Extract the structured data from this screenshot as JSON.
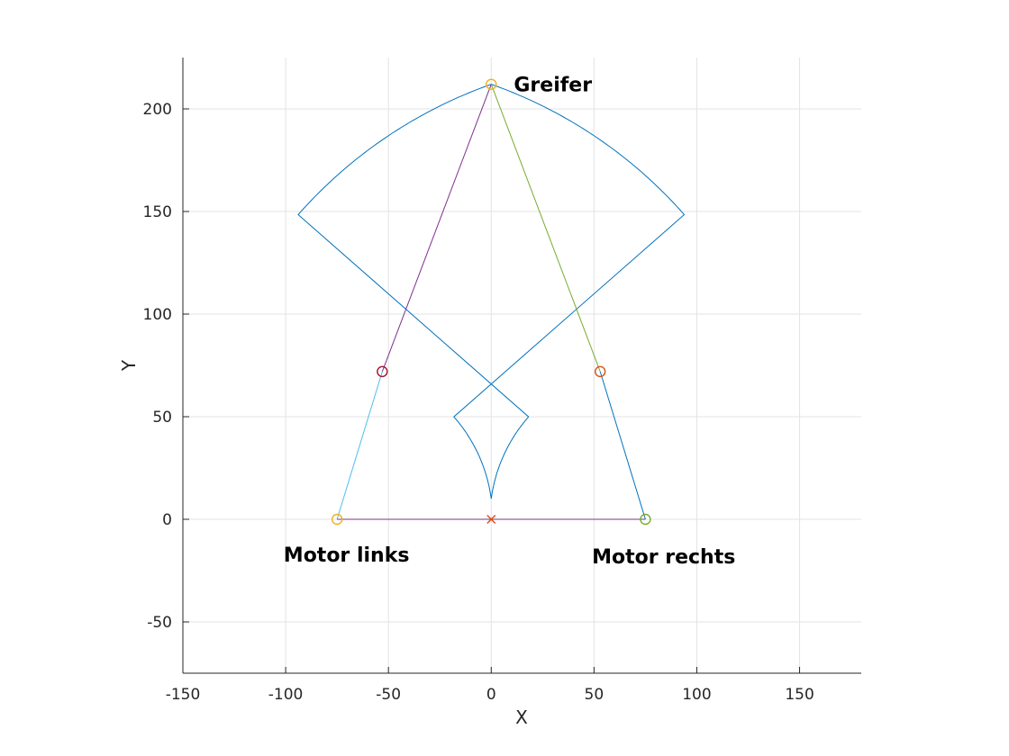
{
  "chart_data": {
    "type": "line",
    "xlabel": "X",
    "ylabel": "Y",
    "xlim": [
      -150,
      180
    ],
    "ylim": [
      -75,
      225
    ],
    "xticks": [
      -150,
      -100,
      -50,
      0,
      50,
      100,
      150
    ],
    "yticks": [
      -50,
      0,
      50,
      100,
      150,
      200
    ],
    "grid": true,
    "workspace_boundary": {
      "color": "#0072BD",
      "motor_left": [
        -75,
        0
      ],
      "motor_right": [
        75,
        0
      ],
      "inner_cusp": [
        0,
        10
      ],
      "upper_left_corner": [
        -82,
        138
      ],
      "upper_right_corner": [
        82,
        138
      ],
      "top_point": [
        0,
        212
      ]
    },
    "links": [
      {
        "from": [
          -75,
          0
        ],
        "to": [
          -53,
          72
        ],
        "color": "#4DBEEE"
      },
      {
        "from": [
          -53,
          72
        ],
        "to": [
          0,
          212
        ],
        "color": "#7E2F8E"
      },
      {
        "from": [
          75,
          0
        ],
        "to": [
          53,
          72
        ],
        "color": "#0072BD"
      },
      {
        "from": [
          53,
          72
        ],
        "to": [
          0,
          212
        ],
        "color": "#77AC30"
      },
      {
        "from": [
          -75,
          0
        ],
        "to": [
          75,
          0
        ],
        "color": "#7E2F8E"
      }
    ],
    "points": [
      {
        "x": -75,
        "y": 0,
        "marker": "circle",
        "color": "#EDB120"
      },
      {
        "x": 75,
        "y": 0,
        "marker": "circle",
        "color": "#77AC30"
      },
      {
        "x": -53,
        "y": 72,
        "marker": "circle",
        "color": "#A2142F"
      },
      {
        "x": 53,
        "y": 72,
        "marker": "circle",
        "color": "#D95319"
      },
      {
        "x": 0,
        "y": 212,
        "marker": "circle",
        "color": "#EDB120"
      },
      {
        "x": 0,
        "y": 0,
        "marker": "cross",
        "color": "#D95319"
      }
    ],
    "annotations": [
      {
        "text": "Greifer",
        "x": 11,
        "y": 212
      },
      {
        "text": "Motor links",
        "x": -101,
        "y": -17
      },
      {
        "text": "Motor rechts",
        "x": 49,
        "y": -18
      }
    ]
  }
}
